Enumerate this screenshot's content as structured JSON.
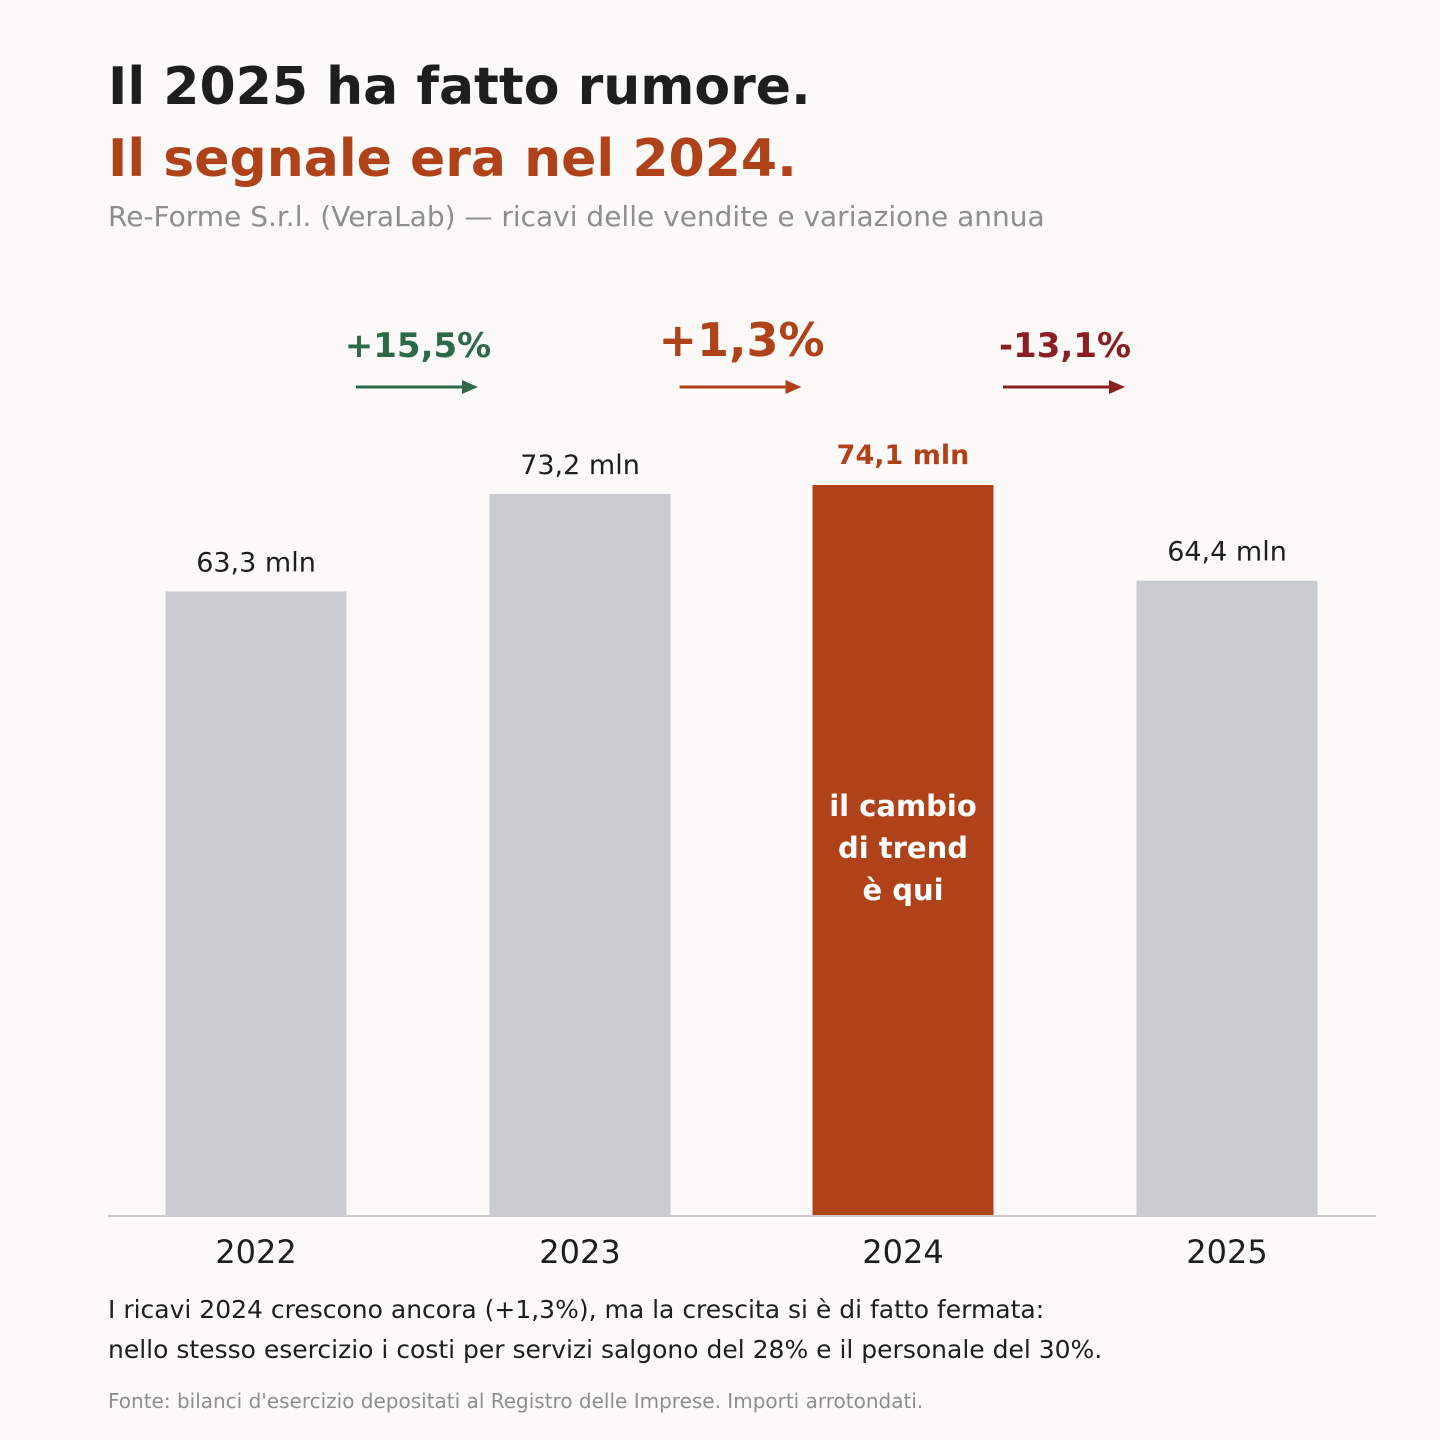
{
  "header": {
    "title_line1": "Il 2025 ha fatto rumore.",
    "title_line2": "Il segnale era nel 2024.",
    "subtitle": "Re-Forme S.r.l. (VeraLab) — ricavi delle vendite e variazione annua"
  },
  "chart_data": {
    "type": "bar",
    "categories": [
      "2022",
      "2023",
      "2024",
      "2025"
    ],
    "values": [
      63.3,
      73.2,
      74.1,
      64.4
    ],
    "value_labels": [
      "63,3 mln",
      "73,2 mln",
      "74,1 mln",
      "64,4 mln"
    ],
    "highlight_index": 2,
    "highlight_annotation": [
      "il cambio",
      "di trend",
      "è qui"
    ],
    "changes": [
      {
        "label": "+15,5%",
        "color": "#2d6a4a",
        "emphasis": false
      },
      {
        "label": "+1,3%",
        "color": "#b0421a",
        "emphasis": true
      },
      {
        "label": "-13,1%",
        "color": "#8b1e22",
        "emphasis": false
      }
    ],
    "ylim": [
      0,
      74.1
    ],
    "grid": false,
    "xlabel": "",
    "ylabel": "",
    "colors": {
      "bar": "#cacbd0",
      "highlight": "#b0421a",
      "label": "#1e1e1e",
      "baseline": "#cccccc"
    }
  },
  "footer": {
    "note_line1": "I ricavi 2024 crescono ancora (+1,3%), ma la crescita si è di fatto fermata:",
    "note_line2": "nello stesso esercizio i costi per servizi salgono del 28% e il personale del 30%.",
    "source": "Fonte: bilanci d'esercizio depositati al Registro delle Imprese. Importi arrotondati."
  }
}
